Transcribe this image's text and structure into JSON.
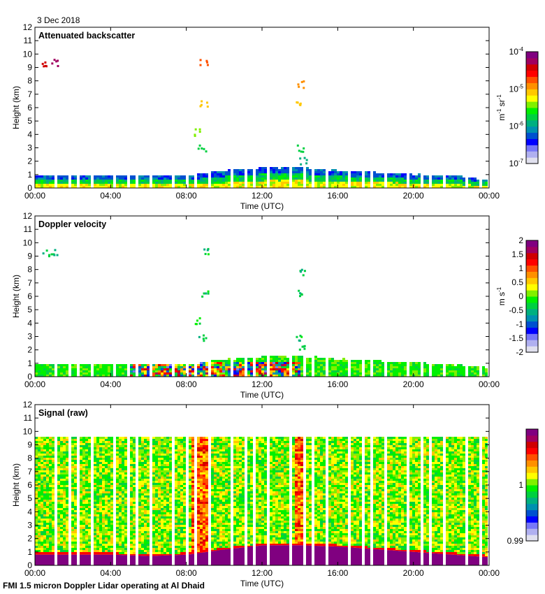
{
  "date_label": "3 Dec 2018",
  "footer": "FMI 1.5 micron Doppler Lidar operating at Al Dhaid",
  "colors": {
    "rainbow": [
      "#e0e0ee",
      "#b0b0f0",
      "#7878f8",
      "#0000ff",
      "#0050d0",
      "#0090b0",
      "#00b080",
      "#00d040",
      "#00f000",
      "#80f000",
      "#ffff00",
      "#ffc800",
      "#ff9000",
      "#ff5000",
      "#ff0000",
      "#d00000",
      "#a00060",
      "#800080"
    ],
    "boundary_purple": "#800080"
  },
  "chart_data": [
    {
      "type": "heatmap",
      "title": "Attenuated backscatter",
      "xlabel": "Time (UTC)",
      "ylabel": "Height (km)",
      "xticks": [
        "00:00",
        "04:00",
        "08:00",
        "12:00",
        "16:00",
        "20:00",
        "00:00"
      ],
      "xlim_hours": [
        0,
        24
      ],
      "yticks": [
        "0",
        "1",
        "2",
        "3",
        "4",
        "5",
        "6",
        "7",
        "8",
        "9",
        "10",
        "11",
        "12"
      ],
      "ylim": [
        0,
        12
      ],
      "colorbar": {
        "label_base": "m",
        "label_base_exp": "-1",
        "label_sr": " sr",
        "label_sr_exp": "-1",
        "scale": "log",
        "range": [
          1e-07,
          0.0001
        ],
        "ticks": [
          {
            "base": "10",
            "exp": "-4",
            "value": 0.0001
          },
          {
            "base": "10",
            "exp": "-5",
            "value": 1e-05
          },
          {
            "base": "10",
            "exp": "-6",
            "value": 1e-06
          },
          {
            "base": "10",
            "exp": "-7",
            "value": 1e-07
          }
        ]
      },
      "boundary_layer_top_km": [
        [
          0,
          1.0
        ],
        [
          4,
          1.0
        ],
        [
          6,
          1.0
        ],
        [
          8,
          1.0
        ],
        [
          9,
          1.2
        ],
        [
          10,
          1.4
        ],
        [
          12,
          1.6
        ],
        [
          14,
          1.6
        ],
        [
          16,
          1.4
        ],
        [
          20,
          1.1
        ],
        [
          22,
          1.0
        ],
        [
          24,
          0.7
        ]
      ]
    },
    {
      "type": "heatmap",
      "title": "Doppler velocity",
      "xlabel": "Time (UTC)",
      "ylabel": "Height (km)",
      "xticks": [
        "00:00",
        "04:00",
        "08:00",
        "12:00",
        "16:00",
        "20:00",
        "00:00"
      ],
      "xlim_hours": [
        0,
        24
      ],
      "yticks": [
        "0",
        "1",
        "2",
        "3",
        "4",
        "5",
        "6",
        "7",
        "8",
        "9",
        "10",
        "11",
        "12"
      ],
      "ylim": [
        0,
        12
      ],
      "colorbar": {
        "label_base": "m s",
        "label_exp": "-1",
        "scale": "linear",
        "range": [
          -2,
          2
        ],
        "ticks": [
          "2",
          "1.5",
          "1",
          "0.5",
          "0",
          "-0.5",
          "-1",
          "-1.5",
          "-2"
        ]
      },
      "boundary_layer_top_km": [
        [
          0,
          1.0
        ],
        [
          6,
          1.0
        ],
        [
          8,
          1.0
        ],
        [
          9,
          1.2
        ],
        [
          10,
          1.4
        ],
        [
          12,
          1.6
        ],
        [
          14,
          1.6
        ],
        [
          16,
          1.4
        ],
        [
          20,
          1.1
        ],
        [
          22,
          1.0
        ],
        [
          24,
          0.7
        ]
      ]
    },
    {
      "type": "heatmap",
      "title": "Signal (raw)",
      "xlabel": "Time (UTC)",
      "ylabel": "Height (km)",
      "xticks": [
        "00:00",
        "04:00",
        "08:00",
        "12:00",
        "16:00",
        "20:00",
        "00:00"
      ],
      "xlim_hours": [
        0,
        24
      ],
      "yticks": [
        "0",
        "1",
        "2",
        "3",
        "4",
        "5",
        "6",
        "7",
        "8",
        "9",
        "10",
        "11",
        "12"
      ],
      "ylim": [
        0,
        12
      ],
      "data_top_km": 9.6,
      "colorbar": {
        "scale": "linear",
        "range": [
          0.99,
          1.01
        ],
        "ticks": [
          {
            "label": "1",
            "value": 1.0
          },
          {
            "label": "0.99",
            "value": 0.99
          }
        ]
      },
      "saturated_layer_top_km": [
        [
          0,
          0.8
        ],
        [
          4,
          0.8
        ],
        [
          6,
          0.7
        ],
        [
          8,
          0.8
        ],
        [
          10,
          1.2
        ],
        [
          12,
          1.5
        ],
        [
          14,
          1.5
        ],
        [
          16,
          1.4
        ],
        [
          20,
          1.0
        ],
        [
          24,
          0.6
        ]
      ]
    }
  ]
}
